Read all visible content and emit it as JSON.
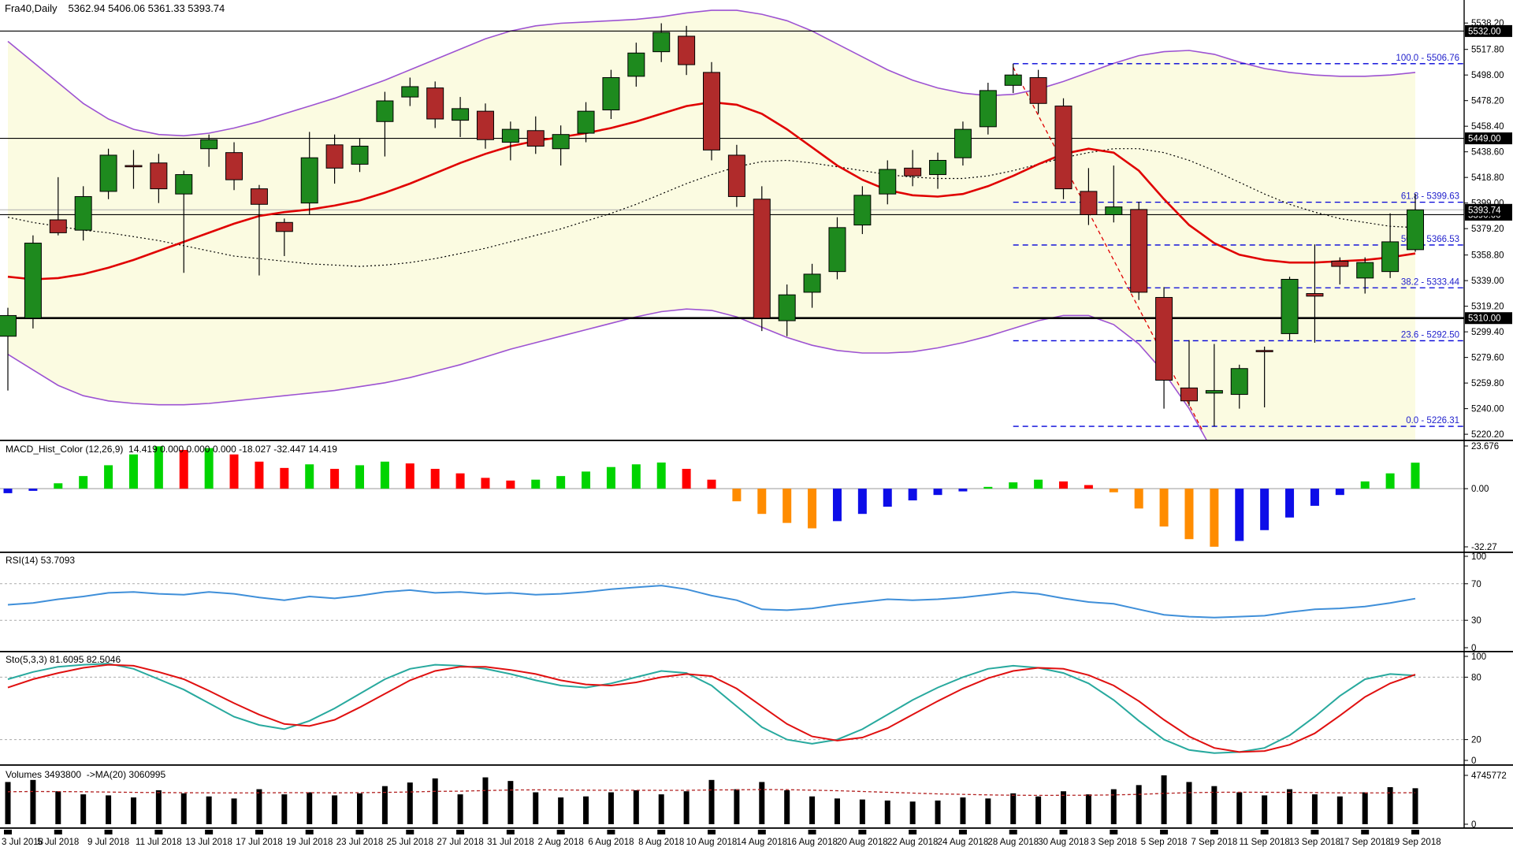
{
  "header": {
    "symbol": "Fra40,Daily",
    "ohlc": "5362.94 5406.06 5361.33 5393.74"
  },
  "colors": {
    "background": "#ffffff",
    "band_fill": "#fbfbe1",
    "band_line": "#9d53d2",
    "candle_up": "#1e8a1e",
    "candle_down": "#b02b2b",
    "candle_outline": "#000000",
    "ma_red": "#e00000",
    "ma_dotted": "#000000",
    "level_line": "#000000",
    "fib_line": "#0000d8",
    "fib_text": "#2222cc",
    "trend_line": "#e00000",
    "current_line": "#b0b0b0",
    "macd_up": "#00d400",
    "macd_down": "#ff0000",
    "macd_neg_orange": "#ff8c00",
    "macd_neg_blue": "#0d0de8",
    "rsi_line": "#3f8fd9",
    "sto_k": "#28a99e",
    "sto_d": "#e01010",
    "vol_bar": "#000000",
    "vol_ma": "#b22222",
    "grid_dash": "#aaaaaa",
    "tag_bg": "#000000",
    "tag_fg": "#ffffff"
  },
  "chart_data": {
    "type": "candlestick",
    "symbol": "Fra40,Daily",
    "current_bar": {
      "open": 5362.94,
      "high": 5406.06,
      "low": 5361.33,
      "close": 5393.74
    },
    "x_labels": [
      "3 Jul 2018",
      "5 Jul 2018",
      "9 Jul 2018",
      "11 Jul 2018",
      "13 Jul 2018",
      "17 Jul 2018",
      "19 Jul 2018",
      "23 Jul 2018",
      "25 Jul 2018",
      "27 Jul 2018",
      "31 Jul 2018",
      "2 Aug 2018",
      "6 Aug 2018",
      "8 Aug 2018",
      "10 Aug 2018",
      "14 Aug 2018",
      "16 Aug 2018",
      "20 Aug 2018",
      "22 Aug 2018",
      "24 Aug 2018",
      "28 Aug 2018",
      "30 Aug 2018",
      "3 Sep 2018",
      "5 Sep 2018",
      "7 Sep 2018",
      "11 Sep 2018",
      "13 Sep 2018",
      "17 Sep 2018",
      "19 Sep 2018"
    ],
    "main": {
      "ylim": [
        5216,
        5556
      ],
      "axis_ticks": [
        "5538.20",
        "5517.80",
        "5498.00",
        "5478.20",
        "5458.40",
        "5438.60",
        "5418.80",
        "5399.00",
        "5379.20",
        "5358.80",
        "5339.00",
        "5319.20",
        "5299.40",
        "5279.60",
        "5259.80",
        "5240.00",
        "5220.20"
      ],
      "level_lines": [
        {
          "price": 5532.0,
          "label": "5532.00",
          "bold": false
        },
        {
          "price": 5449.0,
          "label": "5449.00",
          "bold": false
        },
        {
          "price": 5390.0,
          "label": "5390.00",
          "bold": false
        },
        {
          "price": 5310.0,
          "label": "5310.00",
          "bold": true
        }
      ],
      "current_price": {
        "price": 5393.74,
        "label": "5393.74"
      },
      "fib_levels": [
        {
          "label": "100.0 - 5506.76",
          "price": 5506.76
        },
        {
          "label": "61.8 - 5399.63",
          "price": 5399.63
        },
        {
          "label": "50.0 - 5366.53",
          "price": 5366.53
        },
        {
          "label": "38.2 - 5333.44",
          "price": 5333.44
        },
        {
          "label": "23.6 - 5292.50",
          "price": 5292.5
        },
        {
          "label": "0.0 - 5226.31",
          "price": 5226.31
        }
      ],
      "fib_start_index": 40,
      "trendline": {
        "i1": 40,
        "p1": 5504,
        "i2": 47.0,
        "p2": 5222
      },
      "candles": [
        [
          5296,
          5318,
          5254,
          5312
        ],
        [
          5310,
          5374,
          5302,
          5368
        ],
        [
          5386,
          5419,
          5374,
          5376
        ],
        [
          5378,
          5412,
          5370,
          5404
        ],
        [
          5408,
          5441,
          5402,
          5436
        ],
        [
          5428,
          5440,
          5410,
          5427
        ],
        [
          5430,
          5437,
          5399,
          5410
        ],
        [
          5406,
          5424,
          5345,
          5421
        ],
        [
          5441,
          5452,
          5427,
          5448
        ],
        [
          5438,
          5446,
          5409,
          5417
        ],
        [
          5410,
          5413,
          5343,
          5398
        ],
        [
          5384,
          5387,
          5358,
          5377
        ],
        [
          5399,
          5454,
          5390,
          5434
        ],
        [
          5444,
          5452,
          5414,
          5426
        ],
        [
          5429,
          5449,
          5423,
          5443
        ],
        [
          5462,
          5485,
          5435,
          5478
        ],
        [
          5481,
          5496,
          5474,
          5489
        ],
        [
          5488,
          5493,
          5457,
          5464
        ],
        [
          5463,
          5481,
          5450,
          5472
        ],
        [
          5470,
          5476,
          5441,
          5448
        ],
        [
          5446,
          5462,
          5432,
          5456
        ],
        [
          5455,
          5466,
          5437,
          5443
        ],
        [
          5441,
          5459,
          5428,
          5452
        ],
        [
          5453,
          5477,
          5446,
          5470
        ],
        [
          5471,
          5502,
          5464,
          5496
        ],
        [
          5497,
          5523,
          5489,
          5515
        ],
        [
          5516,
          5538,
          5508,
          5531
        ],
        [
          5528,
          5536,
          5498,
          5506
        ],
        [
          5500,
          5508,
          5432,
          5440
        ],
        [
          5436,
          5444,
          5396,
          5404
        ],
        [
          5402,
          5412,
          5300,
          5310
        ],
        [
          5308,
          5336,
          5296,
          5328
        ],
        [
          5330,
          5352,
          5318,
          5344
        ],
        [
          5346,
          5388,
          5340,
          5380
        ],
        [
          5382,
          5412,
          5375,
          5405
        ],
        [
          5406,
          5432,
          5398,
          5425
        ],
        [
          5426,
          5440,
          5412,
          5420
        ],
        [
          5421,
          5438,
          5410,
          5432
        ],
        [
          5434,
          5462,
          5428,
          5456
        ],
        [
          5458,
          5492,
          5452,
          5486
        ],
        [
          5490,
          5506.76,
          5484,
          5498
        ],
        [
          5496,
          5502,
          5468,
          5476
        ],
        [
          5474,
          5480,
          5402,
          5410
        ],
        [
          5408,
          5426,
          5382,
          5390
        ],
        [
          5390,
          5428,
          5384,
          5396
        ],
        [
          5394,
          5400,
          5324,
          5330
        ],
        [
          5326,
          5334,
          5240,
          5262
        ],
        [
          5256,
          5293,
          5242,
          5246
        ],
        [
          5252,
          5290,
          5226.31,
          5254
        ],
        [
          5251,
          5274,
          5240,
          5271
        ],
        [
          5285,
          5288,
          5241,
          5284
        ],
        [
          5298,
          5342,
          5293,
          5340
        ],
        [
          5329,
          5367,
          5291,
          5327
        ],
        [
          5354,
          5357,
          5336,
          5350
        ],
        [
          5341,
          5357,
          5329,
          5353
        ],
        [
          5346,
          5391,
          5341,
          5369
        ],
        [
          5362.94,
          5406.06,
          5361.33,
          5393.74
        ]
      ],
      "ma_red": [
        5342,
        5340,
        5341,
        5344,
        5349,
        5355,
        5362,
        5369,
        5376,
        5383,
        5389,
        5392,
        5394,
        5397,
        5401,
        5407,
        5414,
        5422,
        5430,
        5437,
        5443,
        5447,
        5450,
        5453,
        5457,
        5462,
        5468,
        5474,
        5477,
        5475,
        5468,
        5456,
        5442,
        5428,
        5417,
        5409,
        5405,
        5404,
        5406,
        5412,
        5420,
        5429,
        5437,
        5441,
        5438,
        5424,
        5402,
        5382,
        5368,
        5359,
        5355,
        5353,
        5353,
        5354,
        5355,
        5357,
        5360
      ],
      "ma_dotted": [
        5388,
        5384,
        5381,
        5378,
        5376,
        5373,
        5370,
        5366,
        5362,
        5358,
        5356,
        5354,
        5352,
        5351,
        5350,
        5351,
        5353,
        5356,
        5360,
        5364,
        5369,
        5374,
        5379,
        5385,
        5391,
        5398,
        5406,
        5414,
        5421,
        5427,
        5431,
        5432,
        5430,
        5427,
        5424,
        5421,
        5419,
        5418,
        5418,
        5420,
        5424,
        5429,
        5434,
        5438,
        5441,
        5441,
        5438,
        5432,
        5424,
        5415,
        5406,
        5398,
        5392,
        5387,
        5384,
        5381,
        5380
      ],
      "bb_upper": [
        5524,
        5508,
        5492,
        5476,
        5464,
        5456,
        5452,
        5451,
        5453,
        5457,
        5462,
        5468,
        5474,
        5480,
        5487,
        5494,
        5502,
        5510,
        5518,
        5526,
        5532,
        5536,
        5538,
        5539,
        5540,
        5541,
        5543,
        5546,
        5548,
        5548,
        5545,
        5540,
        5532,
        5522,
        5512,
        5502,
        5494,
        5488,
        5484,
        5482,
        5483,
        5487,
        5493,
        5500,
        5507,
        5513,
        5516,
        5517,
        5514,
        5508,
        5503,
        5500,
        5498,
        5497,
        5497,
        5498,
        5500
      ],
      "bb_lower": [
        5282,
        5270,
        5258,
        5250,
        5246,
        5244,
        5243,
        5243,
        5244,
        5246,
        5248,
        5250,
        5252,
        5254,
        5257,
        5260,
        5264,
        5269,
        5274,
        5280,
        5286,
        5291,
        5296,
        5301,
        5306,
        5311,
        5315,
        5317,
        5316,
        5311,
        5303,
        5295,
        5289,
        5285,
        5283,
        5283,
        5284,
        5287,
        5291,
        5296,
        5302,
        5308,
        5312,
        5312,
        5305,
        5290,
        5268,
        5240,
        5205,
        5168,
        5130,
        5095,
        5065,
        5040,
        5020,
        5005,
        4995
      ]
    },
    "macd": {
      "label": "MACD_Hist_Color (12,26,9)  14.419 0.000 0.000 0.000 -18.027 -32.447 14.419",
      "axis_ticks": [
        "23.676",
        "0.00",
        "-32.27"
      ],
      "ylim": [
        -32.27,
        23.676
      ],
      "values": [
        -2.5,
        -1.2,
        3,
        7,
        13,
        19,
        23.5,
        21.5,
        22.5,
        19,
        15,
        11.5,
        13.5,
        11,
        13,
        15,
        14,
        11,
        8.5,
        6,
        4.5,
        5,
        7,
        9.5,
        12,
        13.5,
        14.5,
        11,
        5,
        -7,
        -14,
        -19,
        -22,
        -18,
        -14,
        -10,
        -6.5,
        -3.5,
        -1.5,
        1,
        3.5,
        5,
        4,
        2,
        -2,
        -11,
        -21,
        -28,
        -32.2,
        -29,
        -23,
        -16,
        -9.5,
        -3.5,
        4,
        8.5,
        14.419
      ],
      "bar_colors": [
        "b",
        "b",
        "g",
        "g",
        "g",
        "g",
        "g",
        "r",
        "g",
        "r",
        "r",
        "r",
        "g",
        "r",
        "g",
        "g",
        "r",
        "r",
        "r",
        "r",
        "r",
        "g",
        "g",
        "g",
        "g",
        "g",
        "g",
        "r",
        "r",
        "o",
        "o",
        "o",
        "o",
        "b",
        "b",
        "b",
        "b",
        "b",
        "b",
        "g",
        "g",
        "g",
        "r",
        "r",
        "o",
        "o",
        "o",
        "o",
        "o",
        "b",
        "b",
        "b",
        "b",
        "b",
        "g",
        "g",
        "g"
      ]
    },
    "rsi": {
      "label": "RSI(14) 53.7093",
      "axis_ticks": [
        "100",
        "70",
        "30",
        "0"
      ],
      "guide_levels": [
        70,
        30
      ],
      "values": [
        47,
        49,
        53,
        56,
        60,
        61,
        59,
        58,
        61,
        59,
        55,
        52,
        56,
        54,
        57,
        61,
        63,
        60,
        61,
        59,
        60,
        58,
        59,
        61,
        64,
        66,
        68,
        64,
        57,
        52,
        42,
        41,
        43,
        47,
        50,
        53,
        52,
        53,
        55,
        58,
        61,
        59,
        54,
        50,
        48,
        42,
        36,
        34,
        33,
        34,
        35,
        39,
        42,
        43,
        45,
        49,
        53.71
      ]
    },
    "sto": {
      "label": "Sto(5,3,3) 81.6095 82.5046",
      "axis_ticks": [
        "100",
        "80",
        "20",
        "0"
      ],
      "guide_levels": [
        80,
        20
      ],
      "k": [
        78,
        85,
        90,
        92,
        93,
        88,
        78,
        68,
        55,
        42,
        34,
        30,
        38,
        50,
        64,
        78,
        88,
        92,
        91,
        88,
        83,
        77,
        72,
        70,
        74,
        80,
        86,
        84,
        72,
        52,
        32,
        20,
        16,
        20,
        30,
        44,
        58,
        70,
        80,
        88,
        91,
        89,
        84,
        74,
        58,
        38,
        20,
        10,
        7,
        8,
        12,
        24,
        42,
        62,
        78,
        83,
        81.61
      ],
      "d": [
        70,
        78,
        84,
        89,
        92,
        91,
        85,
        78,
        67,
        55,
        44,
        35,
        33,
        39,
        51,
        64,
        77,
        86,
        90,
        90,
        87,
        83,
        77,
        73,
        72,
        75,
        80,
        83,
        81,
        69,
        52,
        35,
        23,
        19,
        22,
        31,
        44,
        57,
        69,
        79,
        86,
        89,
        88,
        82,
        72,
        57,
        39,
        23,
        12,
        8,
        9,
        15,
        26,
        43,
        61,
        74,
        82.5
      ]
    },
    "volume": {
      "label": "Volumes 3493800  ->MA(20) 3060995",
      "axis_ticks": [
        "4745772",
        "0"
      ],
      "max": 4745772,
      "values": [
        4100000,
        4300000,
        3200000,
        2900000,
        2800000,
        2600000,
        3300000,
        3000000,
        2700000,
        2500000,
        3400000,
        2900000,
        3100000,
        2800000,
        3000000,
        3700000,
        4050000,
        4450000,
        2900000,
        4550000,
        4200000,
        3100000,
        2600000,
        2700000,
        3100000,
        3300000,
        2900000,
        3200000,
        4300000,
        3400000,
        4100000,
        3300000,
        2700000,
        2500000,
        2400000,
        2300000,
        2200000,
        2300000,
        2600000,
        2500000,
        3000000,
        2700000,
        3200000,
        2900000,
        3400000,
        3800000,
        4745772,
        4100000,
        3700000,
        3100000,
        2800000,
        3400000,
        2900000,
        2700000,
        3100000,
        3600000,
        3493800
      ],
      "ma": [
        3150000,
        3180000,
        3170000,
        3150000,
        3120000,
        3090000,
        3070000,
        3060000,
        3050000,
        3040000,
        3050000,
        3060000,
        3060000,
        3050000,
        3060000,
        3090000,
        3130000,
        3190000,
        3210000,
        3270000,
        3320000,
        3340000,
        3330000,
        3310000,
        3300000,
        3300000,
        3290000,
        3290000,
        3330000,
        3340000,
        3370000,
        3350000,
        3310000,
        3250000,
        3180000,
        3100000,
        3020000,
        2950000,
        2900000,
        2850000,
        2820000,
        2800000,
        2810000,
        2820000,
        2850000,
        2900000,
        2990000,
        3060000,
        3100000,
        3110000,
        3100000,
        3090000,
        3070000,
        3050000,
        3040000,
        3050000,
        3060995
      ]
    }
  }
}
